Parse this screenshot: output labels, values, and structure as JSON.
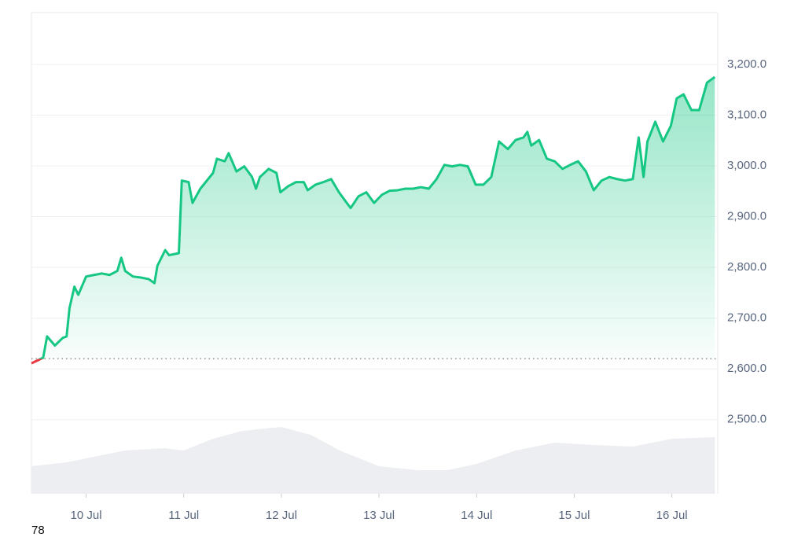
{
  "chart_data": {
    "type": "line",
    "x": [
      9.44,
      9.56,
      9.6,
      9.68,
      9.76,
      9.8,
      9.83,
      9.88,
      9.92,
      10.0,
      10.08,
      10.16,
      10.24,
      10.32,
      10.36,
      10.4,
      10.48,
      10.56,
      10.64,
      10.7,
      10.73,
      10.81,
      10.85,
      10.95,
      10.98,
      11.05,
      11.09,
      11.17,
      11.25,
      11.3,
      11.34,
      11.42,
      11.46,
      11.54,
      11.62,
      11.7,
      11.74,
      11.78,
      11.87,
      11.95,
      11.99,
      12.07,
      12.15,
      12.23,
      12.27,
      12.35,
      12.43,
      12.51,
      12.59,
      12.67,
      12.71,
      12.79,
      12.87,
      12.95,
      13.03,
      13.11,
      13.19,
      13.27,
      13.35,
      13.43,
      13.51,
      13.59,
      13.67,
      13.75,
      13.83,
      13.91,
      13.99,
      14.07,
      14.15,
      14.23,
      14.32,
      14.4,
      14.48,
      14.52,
      14.56,
      14.64,
      14.72,
      14.8,
      14.88,
      14.96,
      15.04,
      15.12,
      15.2,
      15.28,
      15.36,
      15.44,
      15.52,
      15.6,
      15.66,
      15.71,
      15.75,
      15.83,
      15.91,
      15.99,
      16.05,
      16.12,
      16.2,
      16.28,
      16.36,
      16.44
    ],
    "series": [
      {
        "up_color": "#16c784",
        "down_color": "#ea3943",
        "values": [
          2611,
          2622,
          2664,
          2646,
          2661,
          2664,
          2720,
          2762,
          2746,
          2782,
          2785,
          2788,
          2785,
          2793,
          2819,
          2793,
          2782,
          2780,
          2777,
          2769,
          2803,
          2834,
          2824,
          2828,
          2971,
          2968,
          2927,
          2955,
          2974,
          2986,
          3014,
          3009,
          3025,
          2989,
          2999,
          2978,
          2955,
          2978,
          2994,
          2986,
          2948,
          2960,
          2968,
          2968,
          2952,
          2963,
          2968,
          2974,
          2948,
          2927,
          2917,
          2940,
          2948,
          2927,
          2943,
          2951,
          2952,
          2955,
          2955,
          2958,
          2955,
          2974,
          3002,
          2999,
          3002,
          2999,
          2963,
          2963,
          2978,
          3048,
          3033,
          3051,
          3056,
          3067,
          3040,
          3051,
          3014,
          3009,
          2994,
          3002,
          3009,
          2989,
          2952,
          2971,
          2978,
          2974,
          2971,
          2974,
          3056,
          2978,
          3048,
          3087,
          3048,
          3079,
          3133,
          3141,
          3110,
          3110,
          3164,
          3175
        ]
      }
    ],
    "baseline": 2620,
    "volume": {
      "color": "#eceef1",
      "x": [
        9.44,
        9.8,
        10.0,
        10.4,
        10.8,
        11.0,
        11.3,
        11.6,
        12.0,
        12.3,
        12.6,
        13.0,
        13.4,
        13.7,
        14.0,
        14.4,
        14.8,
        15.2,
        15.6,
        16.0,
        16.44
      ],
      "values": [
        35,
        40,
        45,
        55,
        58,
        55,
        70,
        80,
        85,
        75,
        55,
        35,
        30,
        30,
        38,
        55,
        65,
        62,
        60,
        70,
        72
      ],
      "lim": [
        0,
        100
      ]
    },
    "xlim": [
      9.44,
      16.47
    ],
    "xticks": [
      {
        "value": 10,
        "label": "10 Jul"
      },
      {
        "value": 11,
        "label": "11 Jul"
      },
      {
        "value": 12,
        "label": "12 Jul"
      },
      {
        "value": 13,
        "label": "13 Jul"
      },
      {
        "value": 14,
        "label": "14 Jul"
      },
      {
        "value": 15,
        "label": "15 Jul"
      },
      {
        "value": 16,
        "label": "16 Jul"
      }
    ],
    "ylim": [
      2354,
      3302
    ],
    "yticks": [
      {
        "value": 2500,
        "label": "2,500.0"
      },
      {
        "value": 2600,
        "label": "2,600.0"
      },
      {
        "value": 2700,
        "label": "2,700.0"
      },
      {
        "value": 2800,
        "label": "2,800.0"
      },
      {
        "value": 2900,
        "label": "2,900.0"
      },
      {
        "value": 3000,
        "label": "3,000.0"
      },
      {
        "value": 3100,
        "label": "3,100.0"
      },
      {
        "value": 3200,
        "label": "3,200.0"
      }
    ],
    "grid": true,
    "footer": "78"
  }
}
